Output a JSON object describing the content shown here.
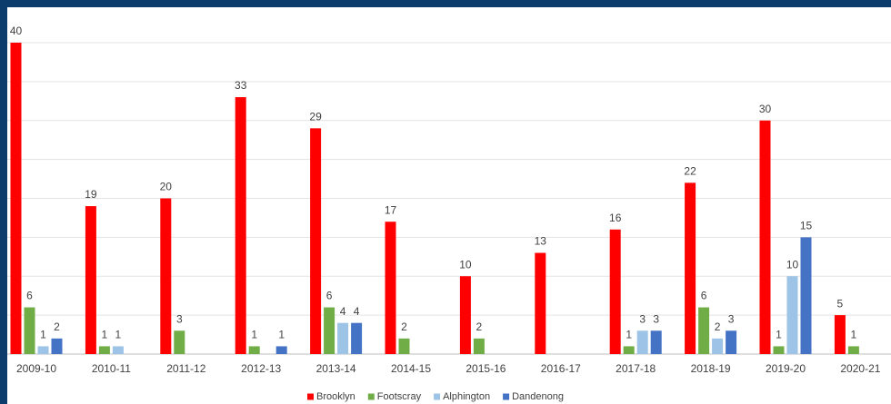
{
  "chart_data": {
    "type": "bar",
    "categories": [
      "2009-10",
      "2010-11",
      "2011-12",
      "2012-13",
      "2013-14",
      "2014-15",
      "2015-16",
      "2016-17",
      "2017-18",
      "2018-19",
      "2019-20",
      "2020-21"
    ],
    "series": [
      {
        "name": "Brooklyn",
        "color": "#ff0000",
        "values": [
          40,
          19,
          20,
          33,
          29,
          17,
          10,
          13,
          16,
          22,
          30,
          5
        ]
      },
      {
        "name": "Footscray",
        "color": "#70ad47",
        "values": [
          6,
          1,
          3,
          1,
          6,
          2,
          2,
          null,
          1,
          6,
          1,
          1
        ]
      },
      {
        "name": "Alphington",
        "color": "#9dc3e6",
        "values": [
          1,
          1,
          null,
          null,
          4,
          null,
          null,
          null,
          3,
          2,
          10,
          null
        ]
      },
      {
        "name": "Dandenong",
        "color": "#4472c4",
        "values": [
          2,
          null,
          null,
          1,
          4,
          null,
          null,
          null,
          3,
          3,
          15,
          null
        ]
      }
    ],
    "ylim": [
      0,
      40
    ],
    "yticks": [
      0,
      5,
      10,
      15,
      20,
      25,
      30,
      35,
      40
    ],
    "grid": true,
    "legend": "bottom"
  }
}
